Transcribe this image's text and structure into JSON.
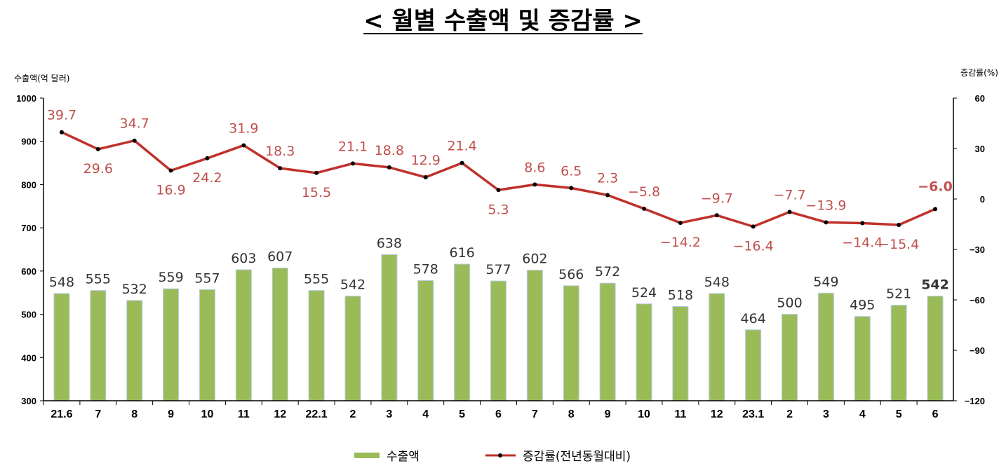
{
  "chart_data": {
    "type": "bar",
    "title": "< 월별 수출액 및 증감률 >",
    "ylabel_left": "수출액(억 달러)",
    "ylabel_right": "증감률(%)",
    "ylim_left": [
      300,
      1000
    ],
    "yticks_left": [
      "300",
      "400",
      "500",
      "600",
      "700",
      "800",
      "900",
      "1000"
    ],
    "ylim_right": [
      -120,
      60
    ],
    "yticks_right": [
      "-120",
      "-90",
      "-60",
      "-30",
      "0",
      "30",
      "60"
    ],
    "categories": [
      "21.6",
      "7",
      "8",
      "9",
      "10",
      "11",
      "12",
      "22.1",
      "2",
      "3",
      "4",
      "5",
      "6",
      "7",
      "8",
      "9",
      "10",
      "11",
      "12",
      "23.1",
      "2",
      "3",
      "4",
      "5",
      "6"
    ],
    "series": [
      {
        "name": "수출액",
        "type": "bar",
        "axis": "left",
        "values": [
          548,
          555,
          532,
          559,
          557,
          603,
          607,
          555,
          542,
          638,
          578,
          616,
          577,
          602,
          566,
          572,
          524,
          518,
          548,
          464,
          500,
          549,
          495,
          521,
          542
        ],
        "labels": [
          "548",
          "555",
          "532",
          "559",
          "557",
          "603",
          "607",
          "555",
          "542",
          "638",
          "578",
          "616",
          "577",
          "602",
          "566",
          "572",
          "524",
          "518",
          "548",
          "464",
          "500",
          "549",
          "495",
          "521",
          "542"
        ]
      },
      {
        "name": "증감률(전년동월대비)",
        "type": "line",
        "axis": "right",
        "values": [
          39.7,
          29.6,
          34.7,
          16.9,
          24.2,
          31.9,
          18.3,
          15.5,
          21.1,
          18.8,
          12.9,
          21.4,
          5.3,
          8.6,
          6.5,
          2.3,
          -5.8,
          -14.2,
          -9.7,
          -16.4,
          -7.7,
          -13.9,
          -14.4,
          -15.4,
          -6.0
        ],
        "labels": [
          "39.7",
          "29.6",
          "34.7",
          "16.9",
          "24.2",
          "31.9",
          "18.3",
          "15.5",
          "21.1",
          "18.8",
          "12.9",
          "21.4",
          "5.3",
          "8.6",
          "6.5",
          "2.3",
          "-5.8",
          "-14.2",
          "-9.7",
          "-16.4",
          "-7.7",
          "-13.9",
          "-14.4",
          "-15.4",
          "-6.0"
        ]
      }
    ],
    "colors": {
      "bar_fill": "#9bbb59",
      "bar_edge": "#b8cce4",
      "line": "#c0312b",
      "rate_label": "#c0504d",
      "highlight_bar_label": "#1f3f9f",
      "highlight_rate_label": "#c0312b"
    },
    "legend": {
      "placement": "bottom-center",
      "bar": "수출액",
      "line": "증감률(전년동월대비)"
    },
    "grid": false
  }
}
